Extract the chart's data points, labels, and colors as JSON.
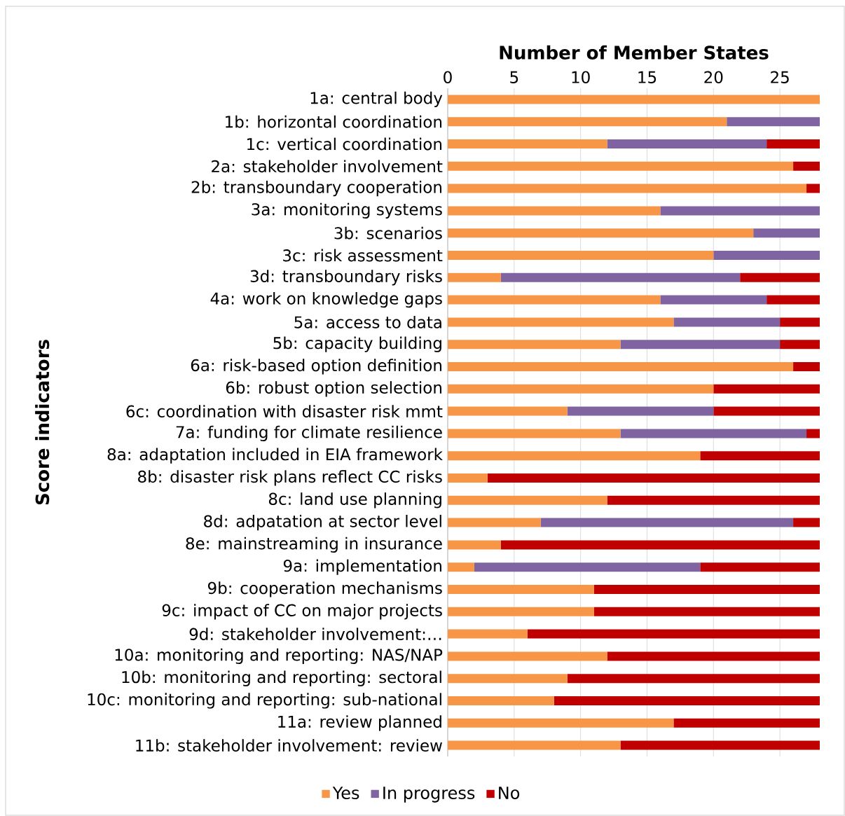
{
  "chart_data": {
    "type": "bar",
    "orientation": "horizontal",
    "stacked": true,
    "xlabel": "Number of Member States",
    "ylabel": "Score indicators",
    "categories": [
      "1a: central body",
      "1b: horizontal coordination",
      "1c: vertical coordination",
      "2a: stakeholder involvement",
      "2b: transboundary cooperation",
      "3a: monitoring systems",
      "3b: scenarios",
      "3c: risk assessment",
      "3d: transboundary risks",
      "4a: work on knowledge gaps",
      "5a: access to data",
      "5b: capacity building",
      "6a: risk-based option definition",
      "6b: robust option selection",
      "6c: coordination with disaster risk mmt",
      "7a: funding for climate resilience",
      "8a: adaptation included in EIA framework",
      "8b: disaster risk plans reflect CC risks",
      "8c: land use planning",
      "8d: adpatation at sector level",
      "8e: mainstreaming in insurance",
      "9a: implementation",
      "9b: cooperation mechanisms",
      "9c: impact of CC on major projects",
      "9d: stakeholder involvement:…",
      "10a: monitoring and reporting: NAS/NAP",
      "10b: monitoring and reporting: sectoral",
      "10c: monitoring and reporting: sub-national",
      "11a: review planned",
      "11b: stakeholder involvement: review"
    ],
    "series": [
      {
        "name": "Yes",
        "color": "#f79646",
        "values": [
          28,
          21,
          12,
          26,
          27,
          16,
          23,
          20,
          4,
          16,
          17,
          13,
          26,
          20,
          9,
          13,
          19,
          3,
          12,
          7,
          4,
          2,
          11,
          11,
          6,
          12,
          9,
          8,
          17,
          13
        ]
      },
      {
        "name": "In progress",
        "color": "#8064a2",
        "values": [
          0,
          7,
          12,
          0,
          0,
          12,
          5,
          8,
          18,
          8,
          8,
          12,
          0,
          0,
          11,
          14,
          0,
          0,
          0,
          19,
          0,
          17,
          0,
          0,
          0,
          0,
          0,
          0,
          0,
          0
        ]
      },
      {
        "name": "No",
        "color": "#c00000",
        "values": [
          0,
          0,
          4,
          2,
          1,
          0,
          0,
          0,
          6,
          4,
          3,
          3,
          2,
          8,
          8,
          1,
          9,
          25,
          16,
          2,
          24,
          9,
          17,
          17,
          22,
          16,
          19,
          20,
          11,
          15
        ]
      }
    ],
    "xlim": [
      0,
      28
    ],
    "xticks": [
      0,
      5,
      10,
      15,
      20,
      25
    ],
    "grid": "x",
    "legend": "bottom"
  }
}
